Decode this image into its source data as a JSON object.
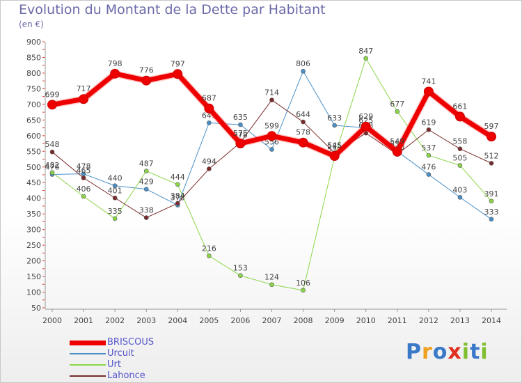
{
  "header": {
    "title": "Evolution du Montant de la Dette par Habitant",
    "subtitle": "(en €)"
  },
  "logo": {
    "text": "Proxiti",
    "letters": [
      "P",
      "r",
      "o",
      "x",
      "i",
      "t",
      "i"
    ]
  },
  "chart_data": {
    "type": "line",
    "x": [
      "2000",
      "2001",
      "2002",
      "2003",
      "2004",
      "2005",
      "2006",
      "2007",
      "2008",
      "2009",
      "2010",
      "2011",
      "2012",
      "2013",
      "2014"
    ],
    "ylim": [
      50,
      900
    ],
    "yticks": [
      50,
      100,
      150,
      200,
      250,
      300,
      350,
      400,
      450,
      500,
      550,
      600,
      650,
      700,
      750,
      800,
      850,
      900
    ],
    "grid": false,
    "legend": "bottom-left",
    "series": [
      {
        "name": "Urcuit",
        "color": "#4a90c8",
        "width": 1,
        "values": [
          476,
          478,
          440,
          429,
          378,
          641,
          635,
          556,
          806,
          633,
          625,
          550,
          476,
          403,
          333
        ],
        "labels": [
          "476",
          "478",
          "440",
          "429",
          "378",
          "641",
          "635",
          "556",
          "806",
          "633",
          "625",
          "550",
          "476",
          "403",
          "333"
        ]
      },
      {
        "name": "Urt",
        "color": "#8bd648",
        "width": 1,
        "values": [
          482,
          406,
          335,
          487,
          444,
          216,
          153,
          124,
          106,
          532,
          847,
          677,
          537,
          505,
          391
        ],
        "labels": [
          "482",
          "406",
          "335",
          "487",
          "444",
          "216",
          "153",
          "124",
          "106",
          "532",
          "847",
          "677",
          "537",
          "505",
          "391"
        ]
      },
      {
        "name": "Lahonce",
        "color": "#7a2a2a",
        "width": 1,
        "values": [
          548,
          465,
          401,
          338,
          384,
          494,
          578,
          714,
          644,
          545,
          608,
          540,
          619,
          558,
          512
        ],
        "labels": [
          "548",
          "465",
          "401",
          "338",
          "384",
          "494",
          "578",
          "714",
          "644",
          "545",
          "608",
          "540",
          "619",
          "558",
          "512"
        ]
      },
      {
        "name": "BRISCOUS",
        "color": "#ee0000",
        "width": 7,
        "values": [
          699,
          717,
          798,
          776,
          797,
          687,
          575,
          599,
          578,
          535,
          629,
          549,
          741,
          661,
          597
        ],
        "labels": [
          "699",
          "717",
          "798",
          "776",
          "797",
          "687",
          "575",
          "599",
          "578",
          "535",
          "629",
          "549",
          "741",
          "661",
          "597"
        ]
      }
    ]
  }
}
